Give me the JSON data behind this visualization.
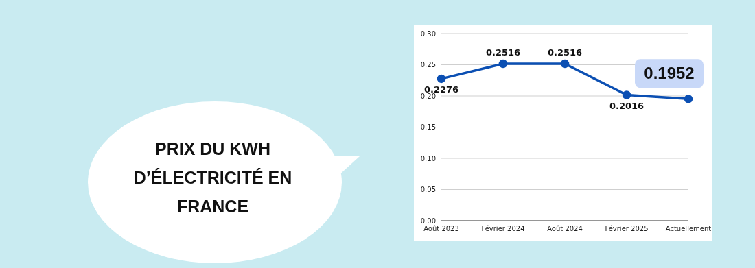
{
  "chart_data": {
    "type": "line",
    "title": "PRIX DU KWH D’ÉLECTRICITÉ EN FRANCE",
    "categories": [
      "Août 2023",
      "Février 2024",
      "Août 2024",
      "Février 2025",
      "Actuellement"
    ],
    "series": [
      {
        "color": "#0b4fb3",
        "values": [
          0.2276,
          0.2516,
          0.2516,
          0.2016,
          0.1952
        ]
      }
    ],
    "ylim": [
      0,
      0.3
    ],
    "yticks": [
      {
        "value": 0,
        "label": "0.00"
      },
      {
        "value": 0.05,
        "label": "0.05"
      },
      {
        "value": 0.1,
        "label": "0.10"
      },
      {
        "value": 0.15,
        "label": "0.15"
      },
      {
        "value": 0.2,
        "label": "0.20"
      },
      {
        "value": 0.25,
        "label": "0.25"
      },
      {
        "value": 0.3,
        "label": "0.30"
      }
    ],
    "grid": "y",
    "marker": "circle",
    "line_style": "solid",
    "data_labels": true
  }
}
